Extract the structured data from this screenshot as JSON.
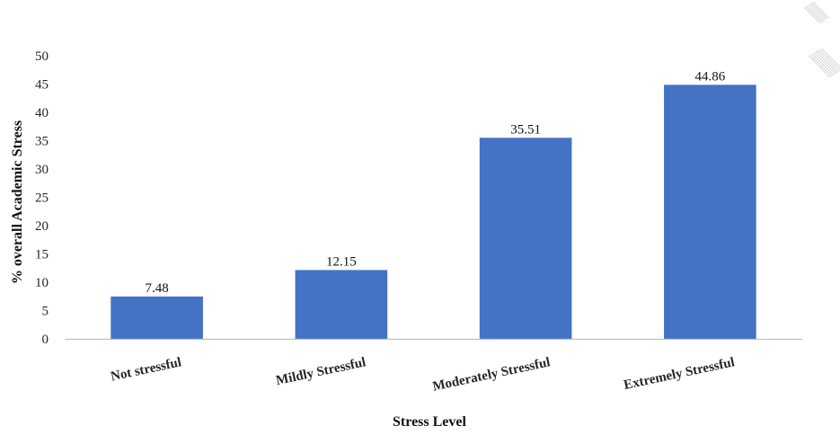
{
  "chart_data": {
    "type": "bar",
    "title": "",
    "xlabel": "Stress Level",
    "ylabel": "% overall Academic Stress",
    "categories": [
      "Not stressful",
      "Mildly Stressful",
      "Moderately Stressful",
      "Extremely Stressful"
    ],
    "values": [
      7.48,
      12.15,
      35.51,
      44.86
    ],
    "data_labels": [
      "7.48",
      "12.15",
      "35.51",
      "44.86"
    ],
    "ylim": [
      0,
      50
    ],
    "yticks": [
      0,
      5,
      10,
      15,
      20,
      25,
      30,
      35,
      40,
      45,
      50
    ],
    "grid": false,
    "legend": "none",
    "bar_color": "#4472C4",
    "axis_color": "#bfbfbf",
    "decoration_color": "#c8c8c8"
  }
}
